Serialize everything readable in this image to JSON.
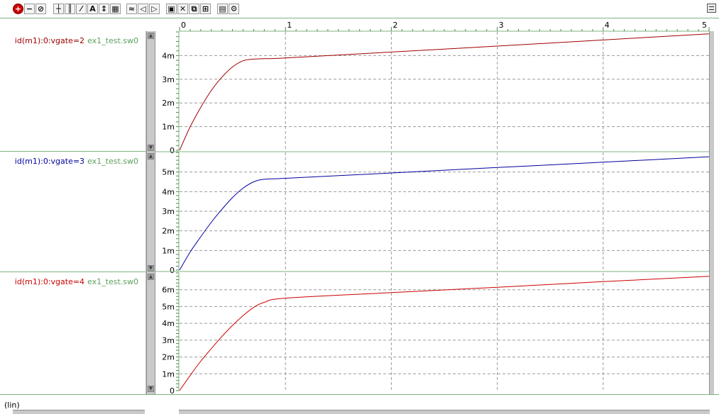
{
  "toolbar": {
    "buttons": [
      {
        "icon": "zoom-in-icon",
        "glyph": "+"
      },
      {
        "icon": "zoom-out-icon",
        "glyph": "−"
      },
      {
        "icon": "zoom-fit-icon",
        "glyph": "⊘"
      },
      {
        "icon": "crosshair-icon",
        "glyph": "┼"
      },
      {
        "icon": "vertical-grid-icon",
        "glyph": "║"
      },
      {
        "icon": "diagonal-measure-icon",
        "glyph": "⁄"
      },
      {
        "icon": "text-annotation-icon",
        "glyph": "A"
      },
      {
        "icon": "vertical-measure-icon",
        "glyph": "↕"
      },
      {
        "icon": "grid-toggle-icon",
        "glyph": "▦"
      },
      {
        "icon": "wave-icon",
        "glyph": "≈"
      },
      {
        "icon": "pan-left-icon",
        "glyph": "◁"
      },
      {
        "icon": "pan-right-icon",
        "glyph": "▷"
      },
      {
        "icon": "panel-icon",
        "glyph": "▣"
      },
      {
        "icon": "delete-icon",
        "glyph": "✕"
      },
      {
        "icon": "group-icon",
        "glyph": "⧉"
      },
      {
        "icon": "layout-icon",
        "glyph": "⊞"
      },
      {
        "icon": "export-icon",
        "glyph": "▤"
      },
      {
        "icon": "settings-icon",
        "glyph": "⚙"
      }
    ],
    "window_menu_icon": "list-icon"
  },
  "status": {
    "scale": "(lin)"
  },
  "chart_data": [
    {
      "type": "line",
      "label": "id(m1):0:vgate=2",
      "file": "ex1_test.sw0",
      "color": "#a00000",
      "xlim": [
        0,
        5
      ],
      "ylim": [
        0,
        0.005
      ],
      "yticks": [
        "0",
        "1m",
        "2m",
        "3m",
        "4m"
      ],
      "ytick_values": [
        0,
        0.001,
        0.002,
        0.003,
        0.004
      ],
      "grid": true,
      "x": [
        0,
        0.1,
        0.2,
        0.3,
        0.4,
        0.5,
        0.6,
        0.7,
        0.8,
        1.0,
        2.0,
        3.0,
        4.0,
        5.0
      ],
      "y": [
        0,
        0.00099,
        0.00181,
        0.00253,
        0.00309,
        0.00352,
        0.00378,
        0.00385,
        0.00387,
        0.0039,
        0.00415,
        0.0044,
        0.00466,
        0.00492
      ]
    },
    {
      "type": "line",
      "label": "id(m1):0:vgate=3",
      "file": "ex1_test.sw0",
      "color": "#0000a0",
      "xlim": [
        0,
        5
      ],
      "ylim": [
        0,
        0.006
      ],
      "yticks": [
        "0",
        "1m",
        "2m",
        "3m",
        "4m",
        "5m"
      ],
      "ytick_values": [
        0,
        0.001,
        0.002,
        0.003,
        0.004,
        0.005
      ],
      "grid": true,
      "x": [
        0,
        0.1,
        0.2,
        0.3,
        0.4,
        0.5,
        0.6,
        0.7,
        0.8,
        1.0,
        2.0,
        3.0,
        4.0,
        5.0
      ],
      "y": [
        0,
        0.00092,
        0.0017,
        0.00244,
        0.0031,
        0.0037,
        0.00418,
        0.0045,
        0.00463,
        0.00468,
        0.00495,
        0.00523,
        0.0055,
        0.00578
      ]
    },
    {
      "type": "line",
      "label": "id(m1):0:vgate=4",
      "file": "ex1_test.sw0",
      "color": "#cc0000",
      "xlim": [
        0,
        5
      ],
      "ylim": [
        0,
        0.007
      ],
      "yticks": [
        "0",
        "1m",
        "2m",
        "3m",
        "4m",
        "5m",
        "6m"
      ],
      "ytick_values": [
        0,
        0.001,
        0.002,
        0.003,
        0.004,
        0.005,
        0.006
      ],
      "grid": true,
      "x": [
        0,
        0.1,
        0.2,
        0.3,
        0.4,
        0.5,
        0.6,
        0.7,
        0.8,
        1.0,
        2.0,
        3.0,
        4.0,
        5.0
      ],
      "y": [
        0,
        0.0009,
        0.00175,
        0.0025,
        0.00322,
        0.00388,
        0.00446,
        0.00495,
        0.00525,
        0.0055,
        0.00583,
        0.00615,
        0.00648,
        0.0068
      ]
    }
  ],
  "x_axis": {
    "ticks": [
      "0",
      "1",
      "2",
      "3",
      "4",
      "5"
    ],
    "tick_values": [
      0,
      1,
      2,
      3,
      4,
      5
    ],
    "minor_per_major": 10
  }
}
